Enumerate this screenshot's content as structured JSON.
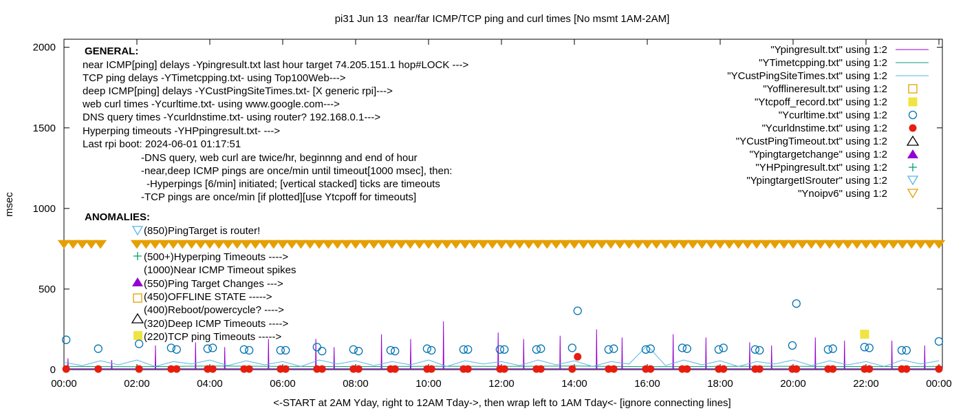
{
  "chart_data": {
    "type": "scatter",
    "title": "pi31 Jun 13  near/far ICMP/TCP ping and curl times [No msmt 1AM-2AM]",
    "xlabel": "<-START at 2AM Yday, right to 12AM Tday->, then wrap left to 1AM Tday<- [ignore connecting lines]",
    "ylabel": "msec",
    "xlim": [
      0,
      24
    ],
    "ylim": [
      0,
      2050
    ],
    "xticks": [
      {
        "value": 0,
        "label": "00:00"
      },
      {
        "value": 2,
        "label": "02:00"
      },
      {
        "value": 4,
        "label": "04:00"
      },
      {
        "value": 6,
        "label": "06:00"
      },
      {
        "value": 8,
        "label": "08:00"
      },
      {
        "value": 10,
        "label": "10:00"
      },
      {
        "value": 12,
        "label": "12:00"
      },
      {
        "value": 14,
        "label": "14:00"
      },
      {
        "value": 16,
        "label": "16:00"
      },
      {
        "value": 18,
        "label": "18:00"
      },
      {
        "value": 20,
        "label": "20:00"
      },
      {
        "value": 22,
        "label": "22:00"
      },
      {
        "value": 24,
        "label": "00:00"
      }
    ],
    "yticks": [
      0,
      500,
      1000,
      1500,
      2000
    ],
    "legend": "top-right",
    "annotations": [
      "GENERAL:",
      "near ICMP[ping] delays -Ypingresult.txt last hour target 74.205.151.1 hop#LOCK --->",
      "TCP ping delays -YTimetcpping.txt- using Top100Web--->",
      "deep ICMP[ping] delays -YCustPingSiteTimes.txt- [X generic rpi]--->",
      "web curl times -Ycurltime.txt- using www.google.com--->",
      "DNS query times -Ycurldnstime.txt- using router? 192.168.0.1--->",
      "Hyperping timeouts -YHPpingresult.txt- --->",
      "Last rpi boot: 2024-06-01 01:17:51",
      "-DNS query, web curl are twice/hr, beginnng and end of hour",
      "-near,deep ICMP pings are once/min until timeout[1000 msec], then:",
      "-Hyperpings [6/min] initiated; [vertical stacked] ticks are timeouts",
      "-TCP pings are once/min [if plotted][use Ytcpoff for timeouts]",
      "ANOMALIES:",
      "(850)PingTarget is router!",
      "(500+)Hyperping Timeouts ---->",
      "(1000)Near ICMP Timeout spikes",
      "(550)Ping Target Changes --->",
      "(450)OFFLINE STATE ----->",
      "(400)Reboot/powercycle? ---->",
      "(320)Deep ICMP Timeouts ---->",
      "(220)TCP ping Timeouts ----->"
    ],
    "series": [
      {
        "name": "\"Ypingresult.txt\" using 1:2",
        "color": "#9400d3",
        "marker": "line",
        "x": [
          0,
          0.1,
          0.11,
          0.12,
          1.3,
          1.31,
          1.32,
          2.5,
          2.51,
          2.52,
          3.6,
          3.61,
          3.62,
          4.4,
          4.41,
          4.42,
          5.6,
          5.61,
          5.62,
          6.9,
          6.91,
          6.92,
          7.4,
          7.41,
          7.42,
          8.7,
          8.71,
          8.72,
          9.5,
          9.51,
          9.52,
          10.4,
          10.41,
          10.42,
          11.9,
          11.91,
          11.92,
          12.6,
          12.61,
          12.62,
          13.6,
          13.61,
          13.62,
          14.6,
          14.61,
          14.62,
          15.3,
          15.31,
          15.32,
          16.7,
          16.71,
          16.72,
          17.6,
          17.61,
          17.62,
          18.8,
          18.81,
          18.82,
          19.4,
          19.41,
          19.42,
          20.6,
          20.61,
          20.62,
          21.4,
          21.41,
          21.42,
          22.7,
          22.71,
          22.72,
          23.6,
          23.61,
          23.62,
          24
        ],
        "values": [
          5,
          5,
          70,
          5,
          5,
          60,
          5,
          5,
          150,
          5,
          5,
          170,
          5,
          5,
          140,
          5,
          5,
          190,
          5,
          5,
          190,
          5,
          5,
          140,
          5,
          5,
          220,
          5,
          5,
          190,
          5,
          5,
          300,
          5,
          5,
          230,
          5,
          5,
          190,
          5,
          5,
          210,
          5,
          5,
          250,
          5,
          5,
          200,
          5,
          5,
          220,
          5,
          5,
          200,
          5,
          5,
          170,
          5,
          5,
          150,
          5,
          5,
          200,
          5,
          5,
          180,
          5,
          5,
          180,
          5,
          5,
          150,
          5,
          5
        ]
      },
      {
        "name": "\"YTimetcpping.txt\" using 1:2",
        "color": "#009e73",
        "marker": "line",
        "x": [
          0,
          2,
          4,
          6,
          8,
          10,
          12,
          14,
          16,
          18,
          20,
          22,
          24
        ],
        "values": [
          20,
          18,
          22,
          20,
          19,
          21,
          20,
          22,
          18,
          20,
          21,
          19,
          20
        ]
      },
      {
        "name": "\"YCustPingSiteTimes.txt\" using 1:2",
        "color": "#56b4e9",
        "marker": "line",
        "x": [
          0,
          0.5,
          1,
          1.5,
          2,
          2.5,
          3,
          3.5,
          4,
          4.5,
          5,
          5.5,
          6,
          6.5,
          7,
          7.5,
          8,
          8.5,
          9,
          9.5,
          10,
          10.5,
          11,
          11.5,
          12,
          12.5,
          13,
          13.5,
          14,
          14.5,
          15,
          15.5,
          16,
          16.5,
          17,
          17.5,
          18,
          18.5,
          19,
          19.5,
          20,
          20.5,
          21,
          21.5,
          22,
          22.5,
          23,
          23.5,
          24
        ],
        "values": [
          45,
          25,
          55,
          30,
          60,
          20,
          50,
          35,
          60,
          25,
          55,
          30,
          50,
          20,
          60,
          35,
          55,
          25,
          50,
          30,
          60,
          20,
          55,
          35,
          50,
          25,
          60,
          30,
          55,
          20,
          50,
          35,
          150,
          25,
          60,
          30,
          55,
          20,
          50,
          35,
          60,
          25,
          55,
          30,
          50,
          20,
          60,
          35,
          55
        ]
      },
      {
        "name": "\"Yofflineresult.txt\" using 1:2",
        "color": "#e69f00",
        "marker": "open-square",
        "x": [],
        "values": []
      },
      {
        "name": "\"Ytcpoff_record.txt\" using 1:2",
        "color": "#f0e442",
        "marker": "filled-square",
        "x": [
          21.96
        ],
        "values": [
          220
        ]
      },
      {
        "name": "\"Ycurltime.txt\" using 1:2",
        "color": "#0072b2",
        "marker": "open-circle",
        "x": [
          0.06,
          0.94,
          2.06,
          2.94,
          3.09,
          3.94,
          4.08,
          4.94,
          5.08,
          5.94,
          6.08,
          6.94,
          7.08,
          7.94,
          8.08,
          8.96,
          9.08,
          9.96,
          10.08,
          10.96,
          11.08,
          11.96,
          12.08,
          12.96,
          13.08,
          13.94,
          14.09,
          14.94,
          15.08,
          15.96,
          16.09,
          16.96,
          17.09,
          17.96,
          18.09,
          18.96,
          19.08,
          19.98,
          20.09,
          20.96,
          21.09,
          21.96,
          22.09,
          22.98,
          23.11,
          24
        ],
        "values": [
          185,
          130,
          160,
          135,
          125,
          130,
          135,
          125,
          120,
          120,
          120,
          140,
          115,
          125,
          115,
          120,
          115,
          130,
          120,
          125,
          125,
          125,
          125,
          125,
          130,
          135,
          365,
          125,
          130,
          125,
          130,
          135,
          130,
          125,
          135,
          125,
          120,
          150,
          410,
          125,
          130,
          140,
          135,
          120,
          120,
          175
        ]
      },
      {
        "name": "\"Ycurldnstime.txt\" using 1:2",
        "color": "#e51e10",
        "marker": "filled-circle",
        "x": [
          0.06,
          0.94,
          2.06,
          2.94,
          3.09,
          3.94,
          4.08,
          4.94,
          5.08,
          5.94,
          6.08,
          6.94,
          7.08,
          7.94,
          8.08,
          8.96,
          9.08,
          9.96,
          10.08,
          10.96,
          11.08,
          11.96,
          12.08,
          12.96,
          13.08,
          13.94,
          14.09,
          14.94,
          15.08,
          15.96,
          16.09,
          16.96,
          17.09,
          17.96,
          18.09,
          18.96,
          19.08,
          19.98,
          20.09,
          20.96,
          21.09,
          21.96,
          22.09,
          22.98,
          23.11,
          24
        ],
        "values": [
          4,
          4,
          4,
          4,
          4,
          4,
          4,
          4,
          4,
          4,
          4,
          4,
          4,
          4,
          4,
          4,
          4,
          4,
          4,
          4,
          4,
          4,
          4,
          4,
          4,
          4,
          80,
          4,
          4,
          4,
          4,
          4,
          4,
          4,
          4,
          4,
          4,
          4,
          4,
          4,
          4,
          4,
          4,
          4,
          4,
          4
        ]
      },
      {
        "name": "\"YCustPingTimeout.txt\" using 1:2",
        "color": "#000000",
        "marker": "open-triangle",
        "x": [],
        "values": []
      },
      {
        "name": "\"Ypingtargetchange\" using 1:2",
        "color": "#9400d3",
        "marker": "filled-triangle",
        "x": [],
        "values": []
      },
      {
        "name": "\"YHPpingresult.txt\" using 1:2",
        "color": "#009e73",
        "marker": "plus",
        "x": [],
        "values": []
      },
      {
        "name": "\"YpingtargetISrouter\" using 1:2",
        "color": "#56b4e9",
        "marker": "open-inverted-triangle",
        "x": [],
        "values": []
      },
      {
        "name": "\"Ynoipv6\" using 1:2",
        "color": "#e69f00",
        "marker": "band-inverted-triangle",
        "x": [
          0,
          0.25,
          0.5,
          0.75,
          1,
          2,
          2.25,
          2.5,
          2.75,
          3,
          3.25,
          3.5,
          3.75,
          4,
          4.25,
          4.5,
          4.75,
          5,
          5.25,
          5.5,
          5.75,
          6,
          6.25,
          6.5,
          6.75,
          7,
          7.25,
          7.5,
          7.75,
          8,
          8.25,
          8.5,
          8.75,
          9,
          9.25,
          9.5,
          9.75,
          10,
          10.25,
          10.5,
          10.75,
          11,
          11.25,
          11.5,
          11.75,
          12,
          12.25,
          12.5,
          12.75,
          13,
          13.25,
          13.5,
          13.75,
          14,
          14.25,
          14.5,
          14.75,
          15,
          15.25,
          15.5,
          15.75,
          16,
          16.25,
          16.5,
          16.75,
          17,
          17.25,
          17.5,
          17.75,
          18,
          18.25,
          18.5,
          18.75,
          19,
          19.25,
          19.5,
          19.75,
          20,
          20.25,
          20.5,
          20.75,
          21,
          21.25,
          21.5,
          21.75,
          22,
          22.25,
          22.5,
          22.75,
          23,
          23.25,
          23.5,
          23.75,
          24
        ],
        "values": [
          780,
          780,
          780,
          780,
          780,
          780,
          780,
          780,
          780,
          780,
          780,
          780,
          780,
          780,
          780,
          780,
          780,
          780,
          780,
          780,
          780,
          780,
          780,
          780,
          780,
          780,
          780,
          780,
          780,
          780,
          780,
          780,
          780,
          780,
          780,
          780,
          780,
          780,
          780,
          780,
          780,
          780,
          780,
          780,
          780,
          780,
          780,
          780,
          780,
          780,
          780,
          780,
          780,
          780,
          780,
          780,
          780,
          780,
          780,
          780,
          780,
          780,
          780,
          780,
          780,
          780,
          780,
          780,
          780,
          780,
          780,
          780,
          780,
          780,
          780,
          780,
          780,
          780,
          780,
          780,
          780,
          780,
          780,
          780,
          780,
          780,
          780,
          780,
          780,
          780,
          780,
          780,
          780,
          780
        ]
      }
    ]
  }
}
